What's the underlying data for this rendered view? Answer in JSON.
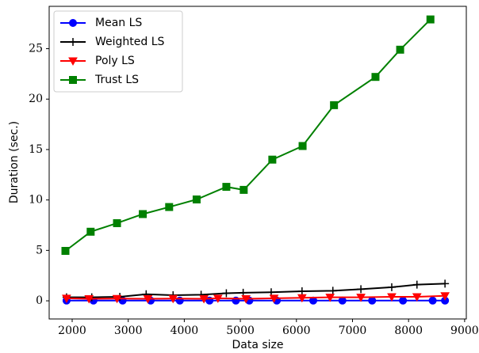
{
  "chart_data": {
    "type": "line",
    "xlabel": "Data size",
    "ylabel": "Duration (sec.)",
    "xlim": [
      1590,
      9030
    ],
    "ylim": [
      -1.8,
      29.2
    ],
    "xticks": [
      2000,
      3000,
      4000,
      5000,
      6000,
      7000,
      8000,
      9000
    ],
    "yticks": [
      0,
      5,
      10,
      15,
      20,
      25
    ],
    "legend": "upper-left",
    "series": [
      {
        "name": "Mean LS",
        "color": "#0000ff",
        "marker": "circle",
        "x": [
          1900,
          2380,
          2900,
          3400,
          3920,
          4450,
          4920,
          5160,
          5650,
          6300,
          6820,
          7350,
          7900,
          8430,
          8650
        ],
        "values": [
          0.02,
          0.02,
          0.02,
          0.02,
          0.02,
          0.02,
          0.02,
          0.02,
          0.02,
          0.02,
          0.02,
          0.02,
          0.02,
          0.02,
          0.02
        ]
      },
      {
        "name": "Weighted LS",
        "color": "#000000",
        "marker": "plus",
        "x": [
          1900,
          2350,
          2850,
          3320,
          3800,
          4300,
          4750,
          5050,
          5550,
          6100,
          6650,
          7150,
          7700,
          8150,
          8650
        ],
        "values": [
          0.35,
          0.35,
          0.4,
          0.65,
          0.55,
          0.6,
          0.75,
          0.8,
          0.85,
          0.95,
          1.0,
          1.15,
          1.35,
          1.6,
          1.7
        ]
      },
      {
        "name": "Poly LS",
        "color": "#ff0000",
        "marker": "triangle-down",
        "x": [
          1900,
          2300,
          2800,
          3350,
          3800,
          4350,
          4600,
          5100,
          5600,
          6100,
          6600,
          7150,
          7700,
          8150,
          8650
        ],
        "values": [
          0.25,
          0.2,
          0.22,
          0.2,
          0.22,
          0.2,
          0.25,
          0.2,
          0.25,
          0.3,
          0.35,
          0.35,
          0.4,
          0.4,
          0.5
        ]
      },
      {
        "name": "Trust LS",
        "color": "#008000",
        "marker": "square",
        "x": [
          1880,
          2330,
          2800,
          3260,
          3730,
          4220,
          4750,
          5060,
          5570,
          6110,
          6670,
          7410,
          7850,
          8390
        ],
        "values": [
          4.95,
          6.85,
          7.7,
          8.6,
          9.3,
          10.05,
          11.3,
          11.0,
          14.0,
          15.35,
          19.4,
          22.2,
          24.9,
          27.9
        ]
      }
    ]
  }
}
